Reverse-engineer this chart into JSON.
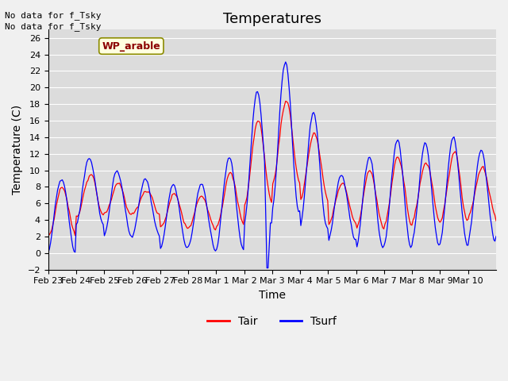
{
  "title": "Temperatures",
  "xlabel": "Time",
  "ylabel": "Temperature (C)",
  "ylim": [
    -2,
    27
  ],
  "yticks": [
    -2,
    0,
    2,
    4,
    6,
    8,
    10,
    12,
    14,
    16,
    18,
    20,
    22,
    24,
    26
  ],
  "xtick_labels": [
    "Feb 23",
    "Feb 24",
    "Feb 25",
    "Feb 26",
    "Feb 27",
    "Feb 28",
    "Mar 1",
    "Mar 2",
    "Mar 3",
    "Mar 4",
    "Mar 5",
    "Mar 6",
    "Mar 7",
    "Mar 8",
    "Mar 9",
    "Mar 10"
  ],
  "text_lines": [
    "No data for f_Tsky",
    "No data for f_Tsky"
  ],
  "label_box": "WP_arable",
  "legend_entries": [
    "Tair",
    "Tsurf"
  ],
  "legend_colors": [
    "#ff0000",
    "#0000ff"
  ],
  "line_color_tair": "#ff0000",
  "line_color_tsurf": "#0000ff",
  "background_color": "#dcdcdc",
  "grid_color": "#ffffff",
  "title_fontsize": 13,
  "axis_fontsize": 10,
  "tick_fontsize": 8
}
